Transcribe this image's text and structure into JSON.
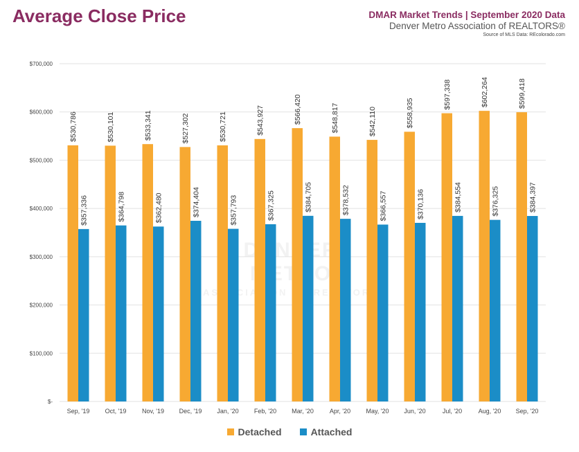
{
  "header": {
    "title": "Average Close Price",
    "report": "DMAR Market Trends | September 2020 Data",
    "organization": "Denver Metro Association of REALTORS®",
    "source": "Source of MLS Data: REcolorado.com"
  },
  "watermark": {
    "line1": "DENVER METRO",
    "line2": "ASSOCIATION OF REALTORS"
  },
  "colors": {
    "title": "#8a2c61",
    "detached": "#f7a932",
    "attached": "#1b8dc7",
    "grid": "#e2e2e2"
  },
  "chart_data": {
    "type": "bar",
    "categories": [
      "Sep, '19",
      "Oct, '19",
      "Nov, '19",
      "Dec, '19",
      "Jan, '20",
      "Feb, '20",
      "Mar, '20",
      "Apr, '20",
      "May, '20",
      "Jun, '20",
      "Jul, '20",
      "Aug, '20",
      "Sep, '20"
    ],
    "series": [
      {
        "name": "Detached",
        "color": "#f7a932",
        "values": [
          530786,
          530101,
          533341,
          527302,
          530721,
          543927,
          566420,
          548817,
          542110,
          558935,
          597338,
          602264,
          599418
        ]
      },
      {
        "name": "Attached",
        "color": "#1b8dc7",
        "values": [
          357336,
          364798,
          362480,
          374404,
          357793,
          367325,
          384705,
          378532,
          366557,
          370136,
          384554,
          376325,
          384397
        ]
      }
    ],
    "ylim": [
      0,
      700000
    ],
    "yticks": [
      0,
      100000,
      200000,
      300000,
      400000,
      500000,
      600000,
      700000
    ],
    "ytick_labels": [
      "$-",
      "$100,000",
      "$200,000",
      "$300,000",
      "$400,000",
      "$500,000",
      "$600,000",
      "$700,000"
    ],
    "data_labels": true,
    "grid": true,
    "legend": "bottom-center"
  }
}
